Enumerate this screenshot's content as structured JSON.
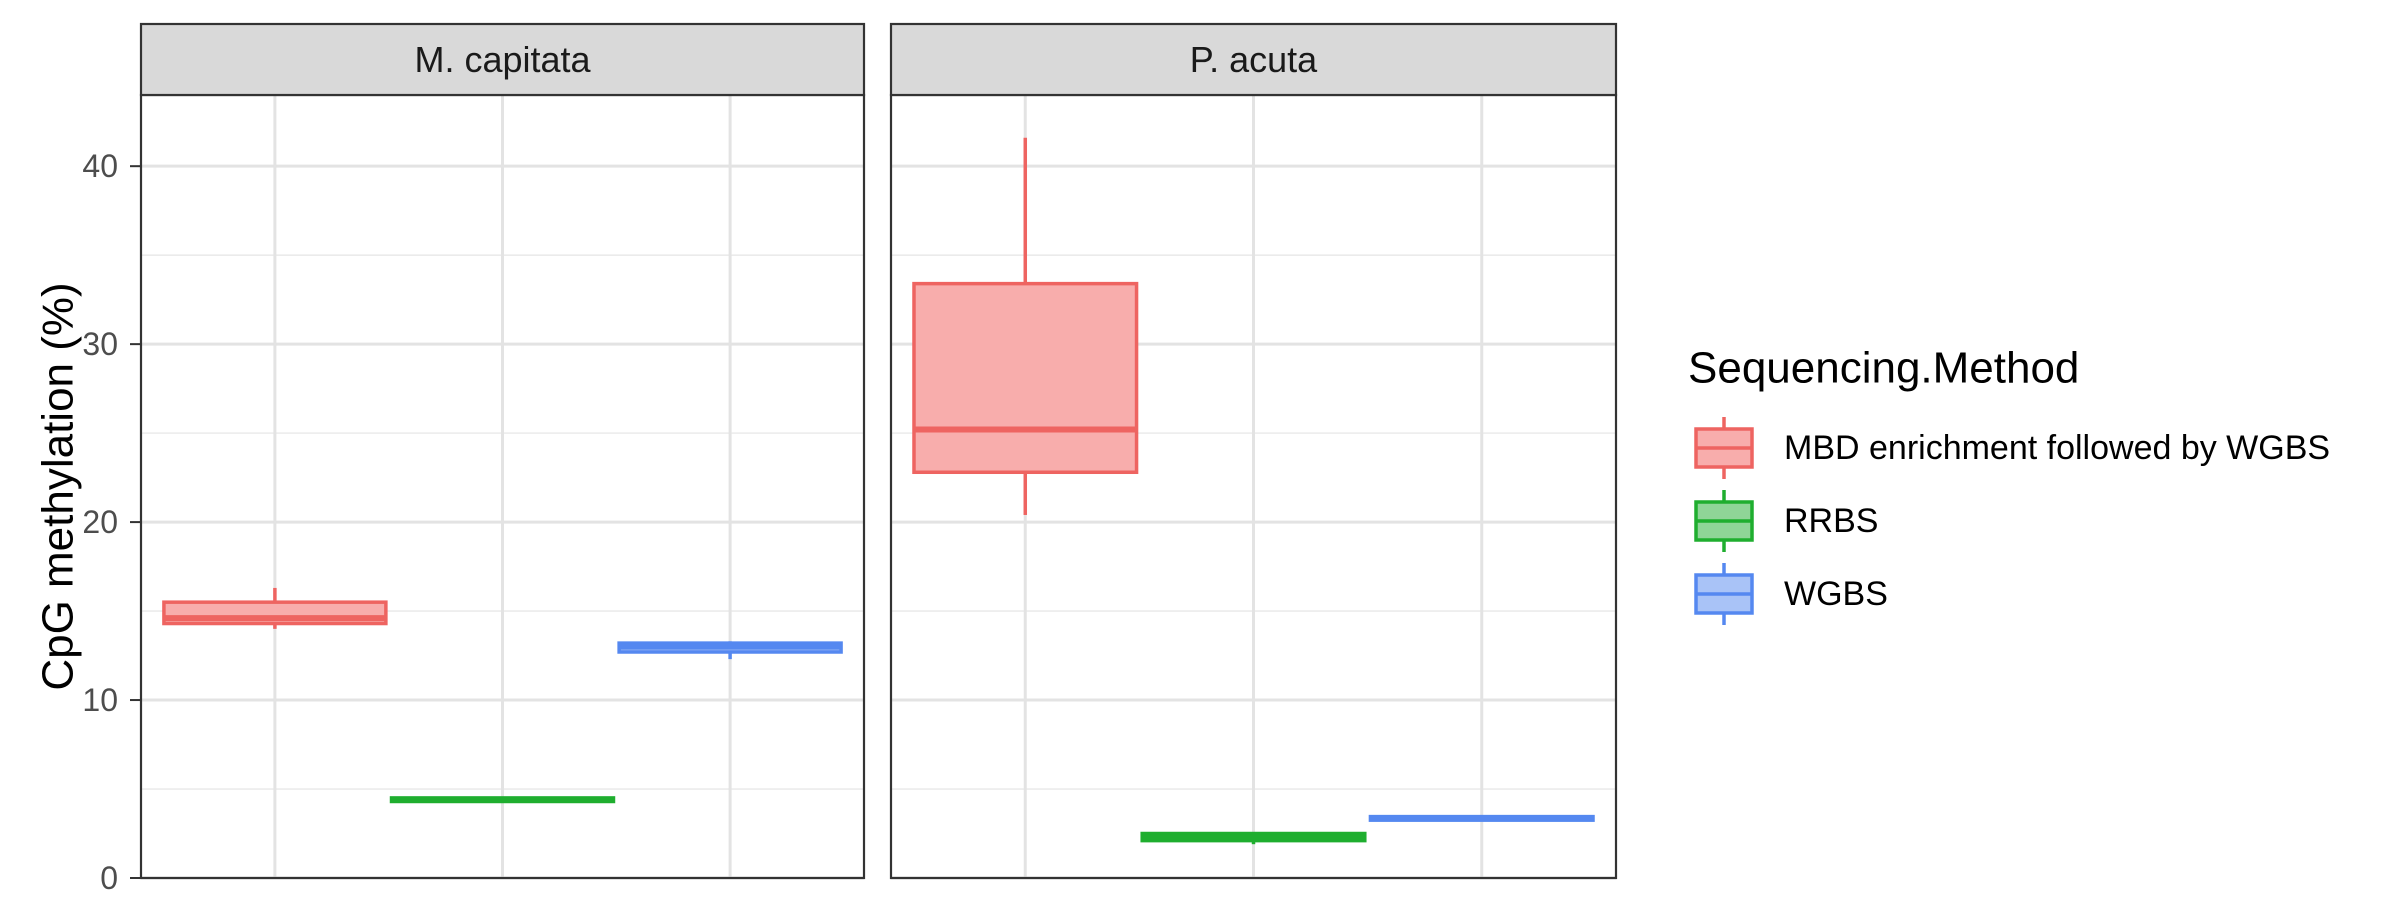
{
  "chart_data": {
    "type": "boxplot",
    "ylabel": "CpG methylation (%)",
    "xlabel": "",
    "ylim": [
      0,
      44
    ],
    "yticks": [
      0,
      10,
      20,
      30,
      40
    ],
    "grid": true,
    "legend": {
      "title": "Sequencing.Method",
      "placement": "right",
      "entries": [
        {
          "label": "MBD enrichment followed by WGBS",
          "color": "#ee6461",
          "fill": "#f8adac"
        },
        {
          "label": "RRBS",
          "color": "#1fae2f",
          "fill": "#8fd597"
        },
        {
          "label": "WGBS",
          "color": "#5588f0",
          "fill": "#a9c3f7"
        }
      ]
    },
    "facets": [
      {
        "label": "M. capitata",
        "boxes": [
          {
            "group": 0,
            "min": 14.0,
            "q1": 14.3,
            "median": 14.6,
            "q3": 15.5,
            "max": 16.3
          },
          {
            "group": 1,
            "min": 4.3,
            "q1": 4.3,
            "median": 4.4,
            "q3": 4.5,
            "max": 4.5
          },
          {
            "group": 2,
            "min": 12.3,
            "q1": 12.7,
            "median": 13.0,
            "q3": 13.2,
            "max": 13.3
          }
        ]
      },
      {
        "label": "P. acuta",
        "boxes": [
          {
            "group": 0,
            "min": 20.4,
            "q1": 22.8,
            "median": 25.2,
            "q3": 33.4,
            "max": 41.6
          },
          {
            "group": 1,
            "min": 1.9,
            "q1": 2.1,
            "median": 2.3,
            "q3": 2.5,
            "max": 2.5
          },
          {
            "group": 2,
            "min": 3.2,
            "q1": 3.25,
            "median": 3.35,
            "q3": 3.45,
            "max": 3.5
          }
        ]
      }
    ]
  }
}
